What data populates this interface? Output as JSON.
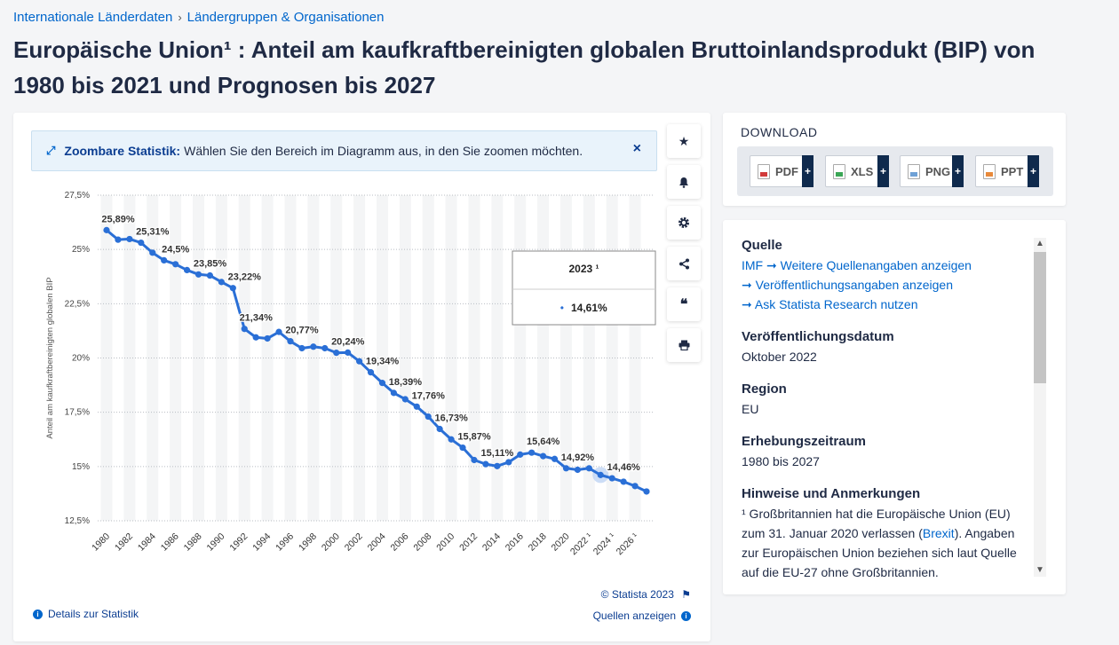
{
  "breadcrumb": {
    "item1": "Internationale Länderdaten",
    "sep": "›",
    "item2": "Ländergruppen & Organisationen"
  },
  "page": {
    "title": "Europäische Union¹ : Anteil am kaufkraftbereinigten globalen Bruttoinlandsprodukt (BIP) von 1980 bis 2021 und Prognosen bis 2027"
  },
  "zoom": {
    "bold": "Zoombare Statistik:",
    "text": "Wählen Sie den Bereich im Diagramm aus, in den Sie zoomen möchten.",
    "close": "×"
  },
  "tooltip": {
    "title": "2023 ¹",
    "bullet": "•",
    "value": "14,61%"
  },
  "footer": {
    "copyright": "© Statista 2023",
    "details": "Details zur Statistik",
    "sources": "Quellen anzeigen"
  },
  "download": {
    "title": "DOWNLOAD",
    "pdf": "PDF",
    "xls": "XLS",
    "png": "PNG",
    "ppt": "PPT",
    "plus": "+"
  },
  "info": {
    "source_title": "Quelle",
    "source_value": "IMF",
    "source_link1": "Weitere Quellenangaben anzeigen",
    "source_link2": "Veröffentlichungsangaben anzeigen",
    "source_link3": "Ask Statista Research nutzen",
    "pub_date_title": "Veröffentlichungsdatum",
    "pub_date_value": "Oktober 2022",
    "region_title": "Region",
    "region_value": "EU",
    "period_title": "Erhebungszeitraum",
    "period_value": "1980 bis 2027",
    "notes_title": "Hinweise und Anmerkungen",
    "notes_pre": "¹ Großbritannien hat die Europäische Union (EU) zum 31. Januar 2020 verlassen (",
    "notes_link": "Brexit",
    "notes_post": "). Angaben zur Europäischen Union beziehen sich laut Quelle auf die EU-27 ohne Großbritannien."
  },
  "colors": {
    "accent": "#0066cc",
    "line": "#2a6fd6",
    "navy": "#0f2a4d"
  },
  "chart_data": {
    "type": "line",
    "title": "Europäische Union¹ : Anteil am kaufkraftbereinigten globalen Bruttoinlandsprodukt (BIP) von 1980 bis 2021 und Prognosen bis 2027",
    "xlabel": "",
    "ylabel": "Anteil am kaufkraftbereinigten globalen BIP",
    "ylim": [
      12.5,
      27.5
    ],
    "yticks": [
      "27,5%",
      "25%",
      "22,5%",
      "20%",
      "17,5%",
      "15%",
      "12,5%"
    ],
    "xticks": [
      "1980",
      "1982",
      "1984",
      "1986",
      "1988",
      "1990",
      "1992",
      "1994",
      "1996",
      "1998",
      "2000",
      "2002",
      "2004",
      "2006",
      "2008",
      "2010",
      "2012",
      "2014",
      "2016",
      "2018",
      "2020",
      "2022 ¹",
      "2024 ¹",
      "2026 ¹"
    ],
    "grid": true,
    "highlight_year": 2023,
    "x": [
      1980,
      1981,
      1982,
      1983,
      1984,
      1985,
      1986,
      1987,
      1988,
      1989,
      1990,
      1991,
      1992,
      1993,
      1994,
      1995,
      1996,
      1997,
      1998,
      1999,
      2000,
      2001,
      2002,
      2003,
      2004,
      2005,
      2006,
      2007,
      2008,
      2009,
      2010,
      2011,
      2012,
      2013,
      2014,
      2015,
      2016,
      2017,
      2018,
      2019,
      2020,
      2021,
      2022,
      2023,
      2024,
      2025,
      2026,
      2027
    ],
    "values": [
      25.89,
      25.45,
      25.48,
      25.31,
      24.85,
      24.5,
      24.32,
      24.05,
      23.85,
      23.8,
      23.5,
      23.22,
      21.34,
      20.95,
      20.9,
      21.2,
      20.77,
      20.45,
      20.52,
      20.45,
      20.24,
      20.25,
      19.85,
      19.34,
      18.85,
      18.39,
      18.1,
      17.76,
      17.3,
      16.73,
      16.25,
      15.87,
      15.3,
      15.11,
      15.02,
      15.2,
      15.55,
      15.64,
      15.48,
      15.35,
      14.92,
      14.85,
      14.92,
      14.61,
      14.46,
      14.3,
      14.1,
      13.85
    ],
    "data_labels": {
      "1980": "25,89%",
      "1983": "25,31%",
      "1985": "24,5%",
      "1988": "23,85%",
      "1991": "23,22%",
      "1992": "21,34%",
      "1996": "20,77%",
      "2000": "20,24%",
      "2003": "19,34%",
      "2005": "18,39%",
      "2007": "17,76%",
      "2009": "16,73%",
      "2011": "15,87%",
      "2013": "15,11%",
      "2017": "15,64%",
      "2020": "14,92%",
      "2024": "14,46%"
    }
  }
}
